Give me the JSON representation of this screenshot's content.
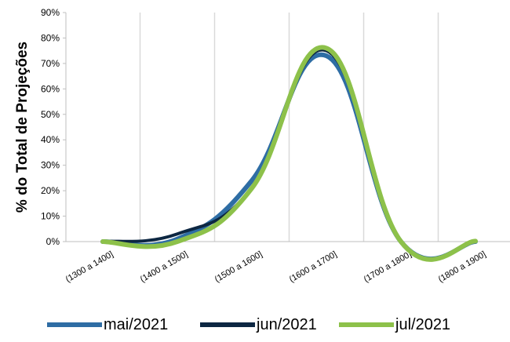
{
  "chart_data": {
    "type": "line",
    "ylabel": "% do Total de Projeções",
    "categories": [
      "(1300 a 1400]",
      "(1400 a 1500]",
      "(1500 a 1600]",
      "(1600 a 1700]",
      "(1700 a 1800]",
      "(1800 a 1900]"
    ],
    "x": [
      1350,
      1450,
      1550,
      1650,
      1750,
      1850
    ],
    "ylim": [
      0,
      90
    ],
    "yticks": [
      0,
      10,
      20,
      30,
      40,
      50,
      60,
      70,
      80,
      90
    ],
    "ytick_labels": [
      "0%",
      "10%",
      "20%",
      "30%",
      "40%",
      "50%",
      "60%",
      "70%",
      "80%",
      "90%"
    ],
    "grid": "vertical",
    "legend_position": "bottom",
    "series": [
      {
        "name": "mai/2021",
        "color": "#2E6DA4",
        "values": [
          0,
          1,
          24,
          73,
          0,
          0
        ]
      },
      {
        "name": "jun/2021",
        "color": "#0D2742",
        "values": [
          0,
          3,
          21,
          75,
          0,
          0
        ]
      },
      {
        "name": "jul/2021",
        "color": "#8DC14A",
        "values": [
          0,
          0,
          21,
          76,
          0,
          0.2
        ]
      }
    ]
  }
}
